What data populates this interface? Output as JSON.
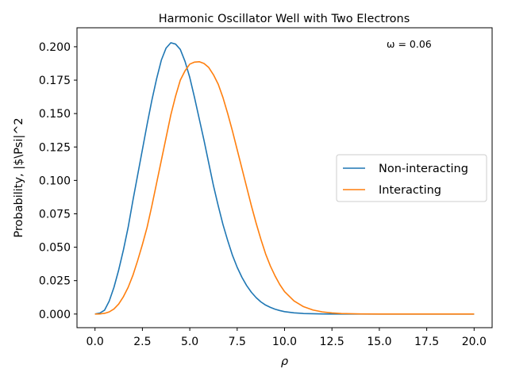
{
  "chart_data": {
    "type": "line",
    "title": "Harmonic Oscillator Well with Two Electrons",
    "xlabel": "ρ",
    "ylabel": "Probability, |$\\Psi|^2",
    "xlim": [
      -0.95,
      20.95
    ],
    "ylim": [
      -0.0102,
      0.2142
    ],
    "xticks": [
      0.0,
      2.5,
      5.0,
      7.5,
      10.0,
      12.5,
      15.0,
      17.5,
      20.0
    ],
    "xtick_labels": [
      "0.0",
      "2.5",
      "5.0",
      "7.5",
      "10.0",
      "12.5",
      "15.0",
      "17.5",
      "20.0"
    ],
    "yticks": [
      0.0,
      0.025,
      0.05,
      0.075,
      0.1,
      0.125,
      0.15,
      0.175,
      0.2
    ],
    "ytick_labels": [
      "0.000",
      "0.025",
      "0.050",
      "0.075",
      "0.100",
      "0.125",
      "0.150",
      "0.175",
      "0.200"
    ],
    "annotation": "ω = 0.06",
    "grid": false,
    "legend_position": "center-right",
    "series": [
      {
        "name": "Non-interacting",
        "color": "#1f77b4",
        "x": [
          0.0,
          0.25,
          0.5,
          0.75,
          1.0,
          1.25,
          1.5,
          1.75,
          2.0,
          2.25,
          2.5,
          2.75,
          3.0,
          3.25,
          3.5,
          3.75,
          4.0,
          4.25,
          4.5,
          4.75,
          5.0,
          5.25,
          5.5,
          5.75,
          6.0,
          6.25,
          6.5,
          6.75,
          7.0,
          7.25,
          7.5,
          7.75,
          8.0,
          8.25,
          8.5,
          8.75,
          9.0,
          9.25,
          9.5,
          9.75,
          10.0,
          10.5,
          11.0,
          11.5,
          12.0,
          12.5,
          13.0,
          13.5,
          14.0,
          15.0,
          16.0,
          17.0,
          18.0,
          19.0,
          20.0
        ],
        "y": [
          0.0,
          0.0007,
          0.0028,
          0.0097,
          0.02,
          0.033,
          0.048,
          0.065,
          0.085,
          0.104,
          0.123,
          0.142,
          0.16,
          0.176,
          0.19,
          0.199,
          0.203,
          0.202,
          0.198,
          0.189,
          0.177,
          0.162,
          0.146,
          0.13,
          0.113,
          0.096,
          0.081,
          0.067,
          0.055,
          0.044,
          0.035,
          0.0275,
          0.0213,
          0.0163,
          0.0123,
          0.0091,
          0.0067,
          0.005,
          0.0036,
          0.0026,
          0.0018,
          0.0009,
          0.0004,
          0.0002,
          0.0001,
          0.0,
          0.0,
          0.0,
          0.0,
          0.0,
          0.0,
          0.0,
          0.0,
          0.0,
          0.0
        ]
      },
      {
        "name": "Interacting",
        "color": "#ff7f0e",
        "x": [
          0.0,
          0.25,
          0.5,
          0.75,
          1.0,
          1.25,
          1.5,
          1.75,
          2.0,
          2.25,
          2.5,
          2.75,
          3.0,
          3.25,
          3.5,
          3.75,
          4.0,
          4.25,
          4.5,
          4.75,
          5.0,
          5.25,
          5.5,
          5.75,
          6.0,
          6.25,
          6.5,
          6.75,
          7.0,
          7.25,
          7.5,
          7.75,
          8.0,
          8.25,
          8.5,
          8.75,
          9.0,
          9.25,
          9.5,
          9.75,
          10.0,
          10.5,
          11.0,
          11.5,
          12.0,
          12.5,
          13.0,
          13.5,
          14.0,
          15.0,
          16.0,
          17.0,
          18.0,
          19.0,
          20.0
        ],
        "y": [
          0.0,
          0.0001,
          0.0005,
          0.0016,
          0.0038,
          0.0075,
          0.013,
          0.02,
          0.029,
          0.04,
          0.052,
          0.065,
          0.081,
          0.098,
          0.115,
          0.132,
          0.149,
          0.163,
          0.175,
          0.182,
          0.187,
          0.1885,
          0.1888,
          0.1875,
          0.1845,
          0.179,
          0.172,
          0.162,
          0.15,
          0.137,
          0.123,
          0.109,
          0.095,
          0.081,
          0.068,
          0.056,
          0.045,
          0.036,
          0.0285,
          0.022,
          0.0168,
          0.0098,
          0.0055,
          0.003,
          0.0016,
          0.0008,
          0.0004,
          0.0002,
          0.0001,
          0.0,
          0.0,
          0.0,
          0.0,
          0.0,
          0.0
        ]
      }
    ]
  }
}
